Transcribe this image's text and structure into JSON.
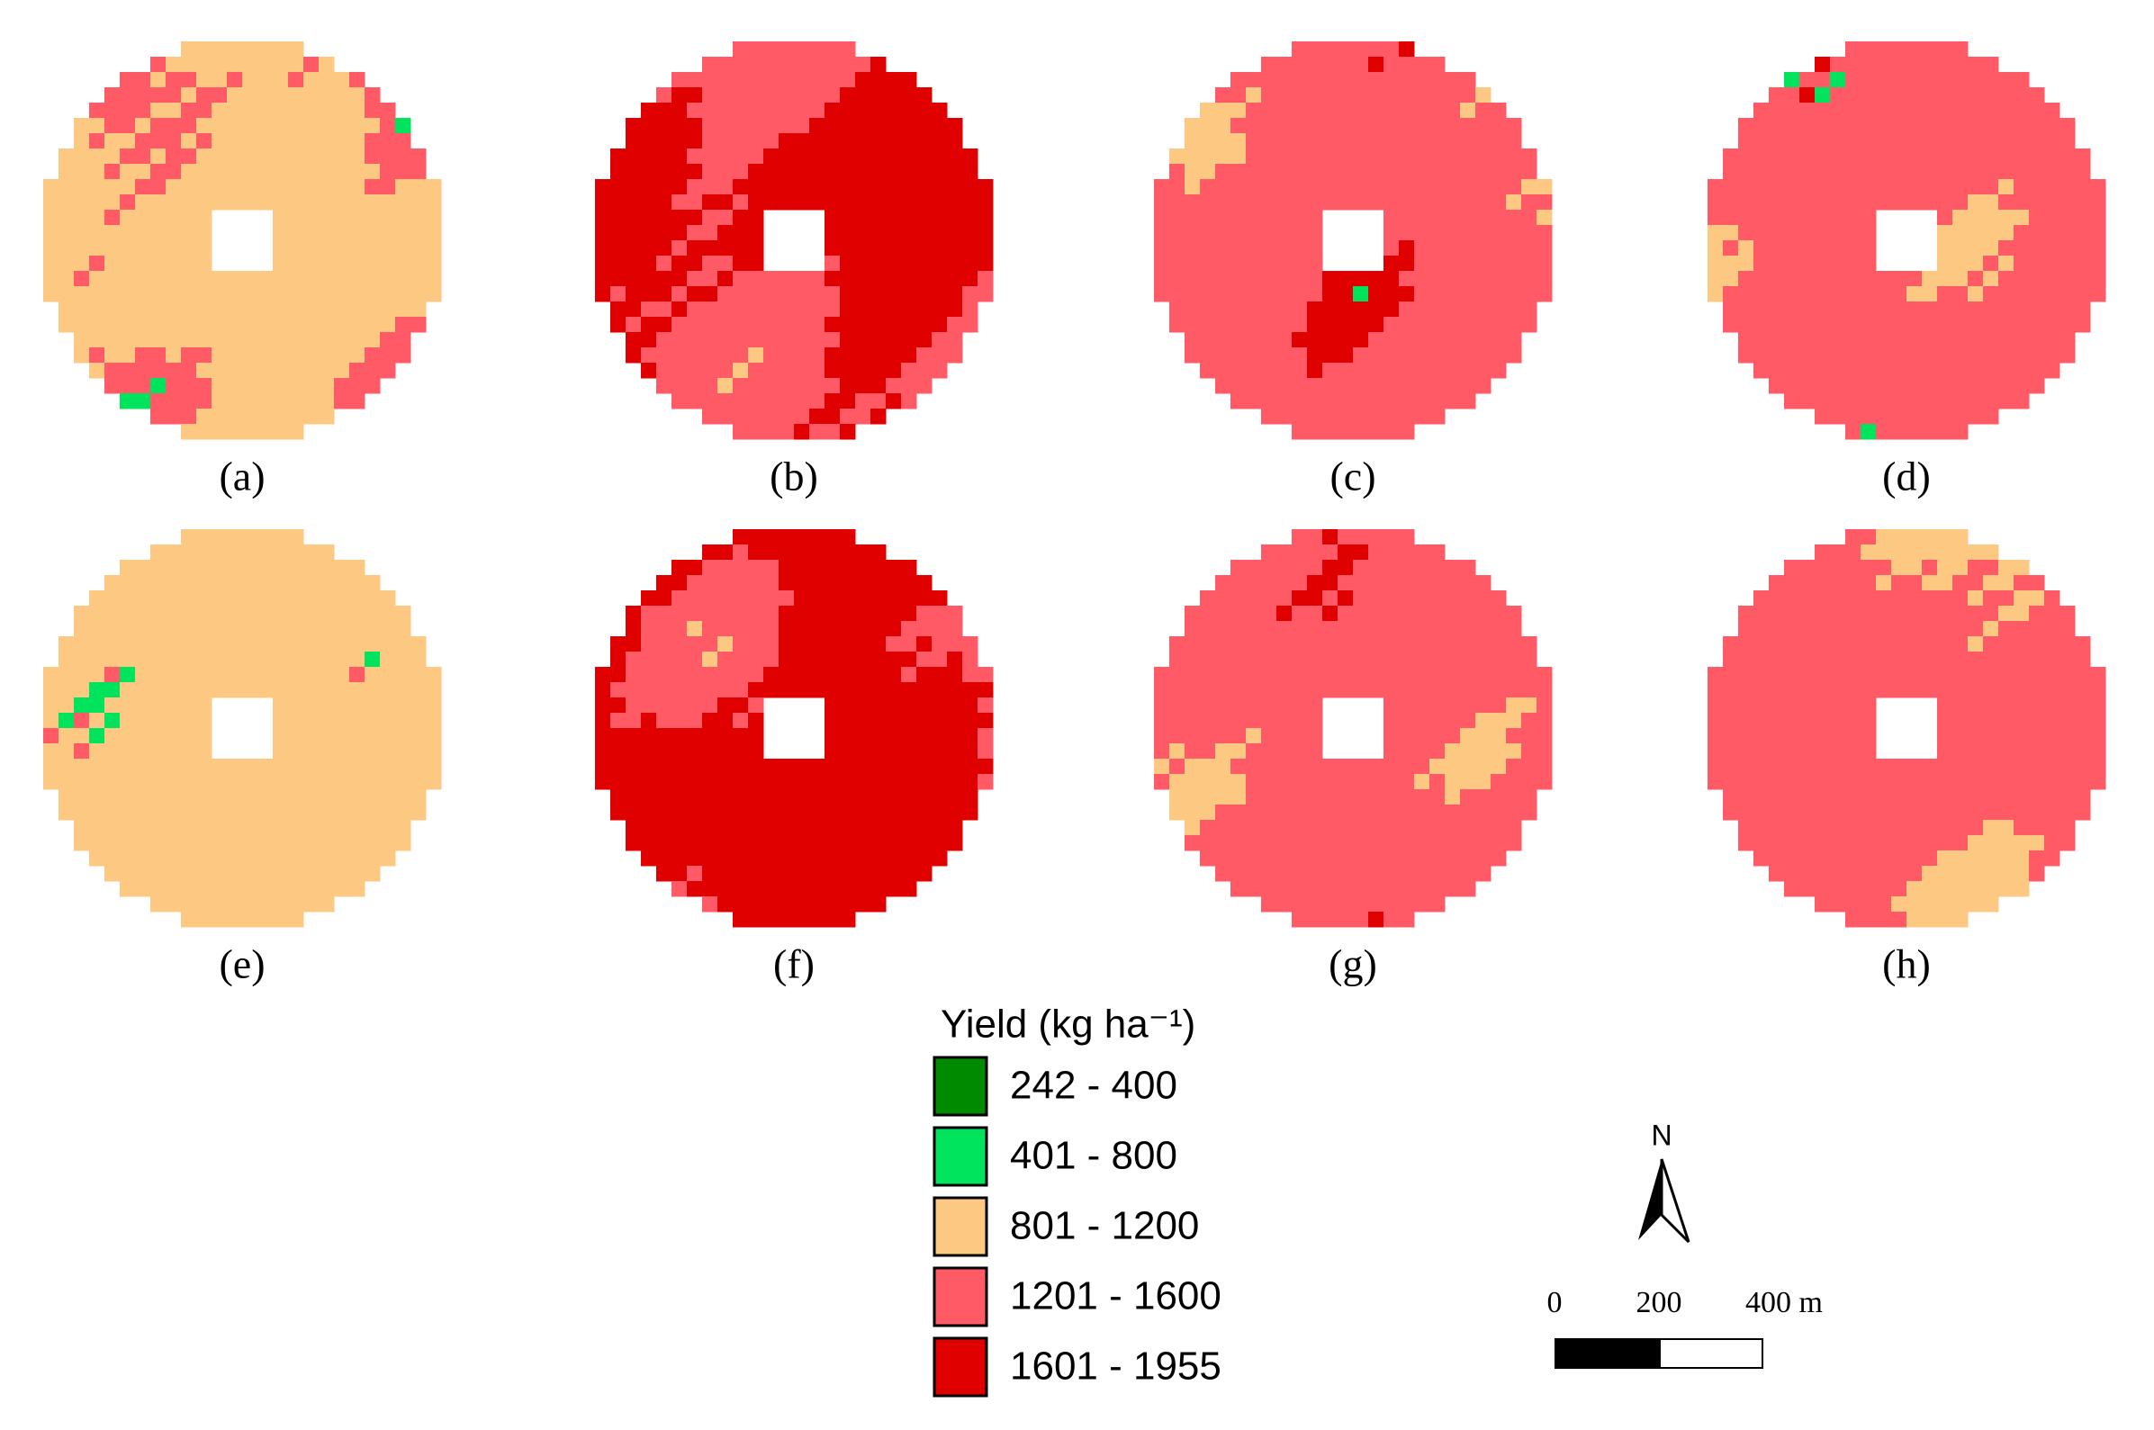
{
  "panels": [
    "(a)",
    "(b)",
    "(c)",
    "(d)",
    "(e)",
    "(f)",
    "(g)",
    "(h)"
  ],
  "legend": {
    "title": "Yield (kg ha⁻¹)",
    "items": [
      {
        "label": "242 - 400",
        "color": "#008a00"
      },
      {
        "label": "401 - 800",
        "color": "#00e35c"
      },
      {
        "label": "801 - 1200",
        "color": "#fdc982"
      },
      {
        "label": "1201 - 1600",
        "color": "#ff5a66"
      },
      {
        "label": "1601 - 1955",
        "color": "#e00000"
      }
    ]
  },
  "north": "N",
  "scale_bar": [
    "0",
    "200",
    "400 m"
  ]
}
